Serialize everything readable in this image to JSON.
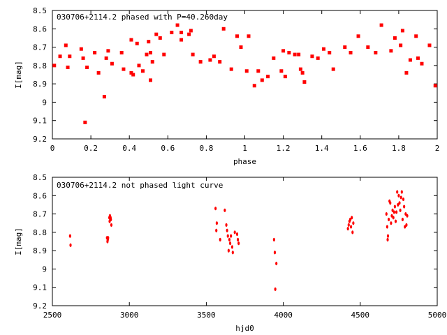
{
  "chart_data": [
    {
      "type": "scatter",
      "title": "030706+2114.2 phased with P=40.260day",
      "xlabel": "phase",
      "ylabel": "I[mag]",
      "xlim": [
        0,
        2
      ],
      "ylim": [
        9.2,
        8.5
      ],
      "y_inverted": true,
      "grid": false,
      "marker_color": "#ff0000",
      "x_ticks": [
        "0",
        "0.2",
        "0.4",
        "0.6",
        "0.8",
        "1",
        "1.2",
        "1.4",
        "1.6",
        "1.8",
        "2"
      ],
      "y_ticks": [
        "8.5",
        "8.6",
        "8.7",
        "8.8",
        "8.9",
        "9",
        "9.1",
        "9.2"
      ],
      "series": [
        {
          "x": [
            0.01,
            0.04,
            0.07,
            0.08,
            0.09,
            0.15,
            0.16,
            0.17,
            0.18,
            0.22,
            0.24,
            0.27,
            0.28,
            0.29,
            0.31,
            0.36,
            0.37,
            0.41,
            0.41,
            0.42,
            0.44,
            0.45,
            0.47,
            0.49,
            0.5,
            0.51,
            0.51,
            0.52,
            0.54,
            0.56,
            0.58,
            0.62,
            0.65,
            0.67,
            0.67,
            0.71,
            0.72,
            0.73,
            0.77,
            0.82,
            0.84,
            0.87,
            0.89,
            0.93,
            0.96,
            0.98,
            1.01,
            1.02,
            1.05,
            1.07,
            1.09,
            1.12,
            1.15,
            1.19,
            1.2,
            1.21,
            1.23,
            1.26,
            1.28,
            1.29,
            1.3,
            1.31,
            1.35,
            1.38,
            1.41,
            1.44,
            1.46,
            1.52,
            1.55,
            1.59,
            1.64,
            1.68,
            1.71,
            1.76,
            1.78,
            1.81,
            1.82,
            1.84,
            1.86,
            1.89,
            1.9,
            1.92,
            1.96,
            1.99
          ],
          "y": [
            8.8,
            8.75,
            8.69,
            8.81,
            8.75,
            8.71,
            8.76,
            9.11,
            8.81,
            8.73,
            8.84,
            8.97,
            8.76,
            8.72,
            8.79,
            8.73,
            8.82,
            8.66,
            8.84,
            8.85,
            8.68,
            8.8,
            8.83,
            8.74,
            8.67,
            8.73,
            8.88,
            8.78,
            8.63,
            8.65,
            8.74,
            8.62,
            8.58,
            8.62,
            8.66,
            8.63,
            8.61,
            8.74,
            8.78,
            8.77,
            8.75,
            8.78,
            8.6,
            8.82,
            8.64,
            8.7,
            8.83,
            8.64,
            8.91,
            8.83,
            8.88,
            8.86,
            8.76,
            8.83,
            8.72,
            8.86,
            8.73,
            8.74,
            8.74,
            8.82,
            8.84,
            8.89,
            8.75,
            8.76,
            8.71,
            8.73,
            8.82,
            8.7,
            8.73,
            8.64,
            8.7,
            8.73,
            8.58,
            8.72,
            8.65,
            8.69,
            8.61,
            8.84,
            8.77,
            8.64,
            8.76,
            8.79,
            8.69,
            8.91
          ]
        }
      ]
    },
    {
      "type": "scatter",
      "title": "030706+2114.2 not phased light curve",
      "xlabel": "hjd0",
      "ylabel": "I[mag]",
      "xlim": [
        2500,
        5000
      ],
      "ylim": [
        9.2,
        8.5
      ],
      "y_inverted": true,
      "grid": false,
      "marker_color": "#ff0000",
      "x_ticks": [
        "2500",
        "3000",
        "3500",
        "4000",
        "4500",
        "5000"
      ],
      "y_ticks": [
        "8.5",
        "8.6",
        "8.7",
        "8.8",
        "8.9",
        "9",
        "9.1",
        "9.2"
      ],
      "series": [
        {
          "x": [
            2615,
            2618,
            2855,
            2858,
            2860,
            2862,
            2870,
            2872,
            2874,
            2876,
            2878,
            2880,
            2883,
            3560,
            3565,
            3568,
            3590,
            3620,
            3630,
            3635,
            3640,
            3645,
            3650,
            3655,
            3660,
            3668,
            3672,
            3685,
            3700,
            3705,
            3710,
            3940,
            3945,
            3948,
            3955,
            4420,
            4425,
            4430,
            4435,
            4440,
            4445,
            4450,
            4455,
            4670,
            4675,
            4678,
            4680,
            4685,
            4690,
            4695,
            4700,
            4705,
            4710,
            4715,
            4720,
            4725,
            4730,
            4735,
            4740,
            4745,
            4750,
            4755,
            4760,
            4765,
            4770,
            4775,
            4780,
            4785,
            4790,
            4795,
            4800,
            4805
          ],
          "y": [
            8.82,
            8.87,
            8.83,
            8.85,
            8.84,
            8.83,
            8.72,
            8.74,
            8.71,
            8.73,
            8.72,
            8.73,
            8.76,
            8.67,
            8.79,
            8.75,
            8.84,
            8.68,
            8.76,
            8.79,
            8.82,
            8.9,
            8.84,
            8.86,
            8.82,
            8.88,
            8.91,
            8.8,
            8.81,
            8.84,
            8.86,
            8.84,
            8.91,
            9.11,
            8.97,
            8.78,
            8.76,
            8.74,
            8.73,
            8.77,
            8.72,
            8.8,
            8.75,
            8.7,
            8.77,
            8.84,
            8.82,
            8.73,
            8.63,
            8.64,
            8.75,
            8.71,
            8.68,
            8.72,
            8.69,
            8.66,
            8.74,
            8.69,
            8.58,
            8.65,
            8.6,
            8.64,
            8.68,
            8.61,
            8.58,
            8.73,
            8.62,
            8.66,
            8.77,
            8.7,
            8.76,
            8.71
          ]
        }
      ]
    }
  ]
}
